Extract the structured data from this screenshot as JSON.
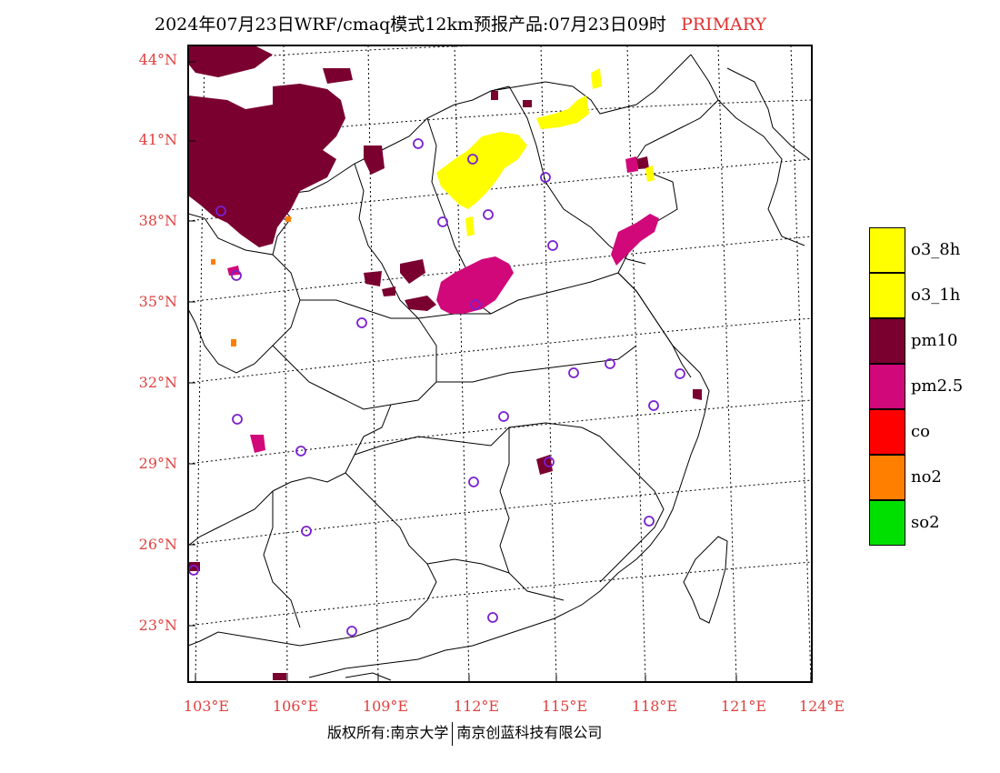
{
  "header": {
    "title": "2024年07月23日WRF/cmaq模式12km预报产品:07月23日09时",
    "tag": "PRIMARY",
    "tag_color": "#e03030"
  },
  "map": {
    "lat_labels": [
      "44°N",
      "41°N",
      "38°N",
      "35°N",
      "32°N",
      "29°N",
      "26°N",
      "23°N"
    ],
    "lon_labels": [
      "103°E",
      "106°E",
      "109°E",
      "112°E",
      "115°E",
      "118°E",
      "121°E",
      "124°E"
    ],
    "label_color": "#e04040"
  },
  "legend": [
    {
      "label": "o3_8h",
      "color": "#ffff00"
    },
    {
      "label": "o3_1h",
      "color": "#ffff00"
    },
    {
      "label": "pm10",
      "color": "#7a0030"
    },
    {
      "label": "pm2.5",
      "color": "#d0087a"
    },
    {
      "label": "co",
      "color": "#ff0000"
    },
    {
      "label": "no2",
      "color": "#ff8000"
    },
    {
      "label": "so2",
      "color": "#00e000"
    }
  ],
  "footer": {
    "left": "版权所有:南京大学",
    "right": "南京创蓝科技有限公司"
  }
}
